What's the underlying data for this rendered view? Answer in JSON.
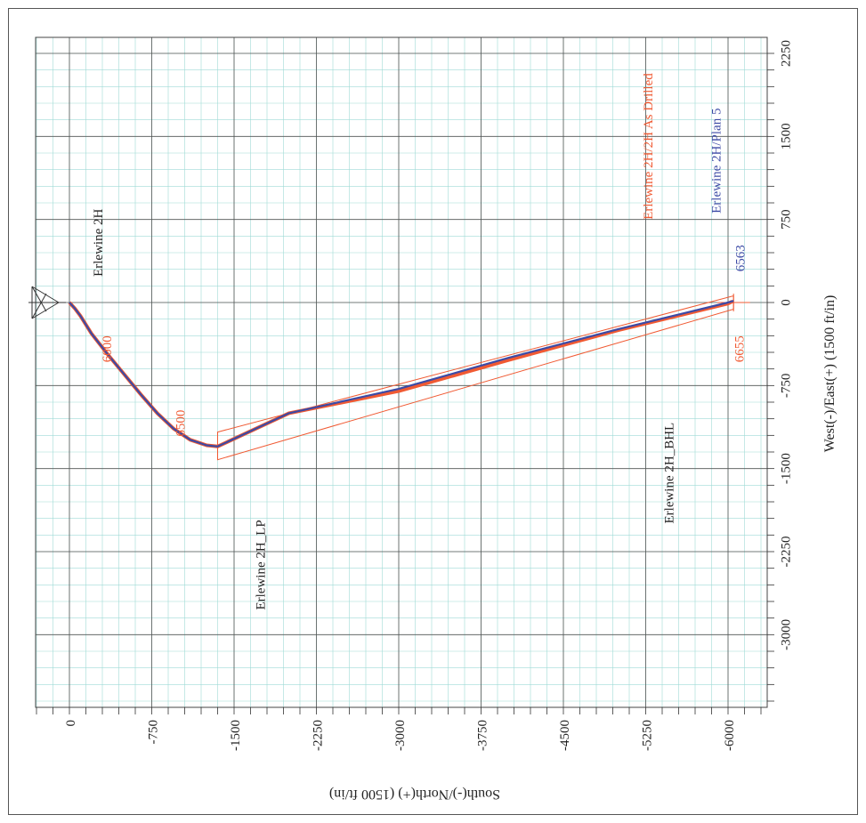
{
  "chart_data": {
    "type": "line",
    "xlabel": "South(-)/North(+) (1500 ft/in)",
    "ylabel": "West(-)/East(+) (1500 ft/in)",
    "xlim": [
      300,
      -6300
    ],
    "ylim": [
      -3750,
      2550
    ],
    "x_ticks": [
      0,
      -750,
      -1500,
      -2250,
      -3000,
      -3750,
      -4500,
      -5250,
      -6000
    ],
    "x_tick_labels": [
      "0",
      "-750",
      "-1500",
      "-2250",
      "-3000",
      "-3750",
      "-4500",
      "-5250",
      "-6000"
    ],
    "y_ticks": [
      -3000,
      -2250,
      -1500,
      -750,
      0,
      750,
      1500,
      2250
    ],
    "y_tick_labels": [
      "-3000",
      "-2250",
      "-1500",
      "-750",
      "0",
      "750",
      "1500",
      "2250"
    ],
    "grid": true,
    "colors": {
      "as_drilled": "#f05a33",
      "plan": "#3c4aa5",
      "grid_major": "#555555",
      "grid_minor": "#9fdbd6"
    },
    "series": [
      {
        "name": "Erlewine 2H/2H As Drilled",
        "color": "#f05a33",
        "points": [
          [
            0,
            0
          ],
          [
            -50,
            -55
          ],
          [
            -100,
            -120
          ],
          [
            -200,
            -280
          ],
          [
            -350,
            -470
          ],
          [
            -500,
            -650
          ],
          [
            -650,
            -830
          ],
          [
            -800,
            -1000
          ],
          [
            -950,
            -1140
          ],
          [
            -1100,
            -1240
          ],
          [
            -1250,
            -1290
          ],
          [
            -1350,
            -1300
          ],
          [
            -2000,
            -1000
          ],
          [
            -3000,
            -800
          ],
          [
            -4000,
            -520
          ],
          [
            -5000,
            -250
          ],
          [
            -6000,
            -10
          ],
          [
            -6040,
            10
          ]
        ]
      },
      {
        "name": "Erlewine 2H/Plan 5",
        "color": "#3c4aa5",
        "points": [
          [
            0,
            0
          ],
          [
            -50,
            -55
          ],
          [
            -100,
            -120
          ],
          [
            -200,
            -280
          ],
          [
            -350,
            -470
          ],
          [
            -500,
            -650
          ],
          [
            -650,
            -830
          ],
          [
            -800,
            -1000
          ],
          [
            -950,
            -1140
          ],
          [
            -1100,
            -1240
          ],
          [
            -1250,
            -1290
          ],
          [
            -1350,
            -1300
          ],
          [
            -2000,
            -1000
          ],
          [
            -3000,
            -780
          ],
          [
            -4000,
            -500
          ],
          [
            -5000,
            -240
          ],
          [
            -6000,
            0
          ],
          [
            -6050,
            15
          ]
        ]
      }
    ],
    "annotations": [
      {
        "text": "Erlewine 2H",
        "x": -300,
        "y": 540,
        "color": "#222222"
      },
      {
        "text": "6000",
        "x": -380,
        "y": -420,
        "color": "#f05a33"
      },
      {
        "text": "6500",
        "x": -1050,
        "y": -1090,
        "color": "#f05a33"
      },
      {
        "text": "Erlewine 2H_LP",
        "x": -1780,
        "y": -2370,
        "color": "#222222"
      },
      {
        "text": "Erlewine 2H_BHL",
        "x": -5500,
        "y": -1540,
        "color": "#222222"
      },
      {
        "text": "Erlewine 2H/2H As Drilled",
        "x": -5310,
        "y": 1410,
        "color": "#f05a33"
      },
      {
        "text": "Erlewine 2H/Plan 5",
        "x": -5930,
        "y": 1280,
        "color": "#3c4aa5"
      },
      {
        "text": "6563",
        "x": -6150,
        "y": 400,
        "color": "#3c4aa5"
      },
      {
        "text": "6655",
        "x": -6140,
        "y": -420,
        "color": "#f05a33"
      }
    ]
  }
}
